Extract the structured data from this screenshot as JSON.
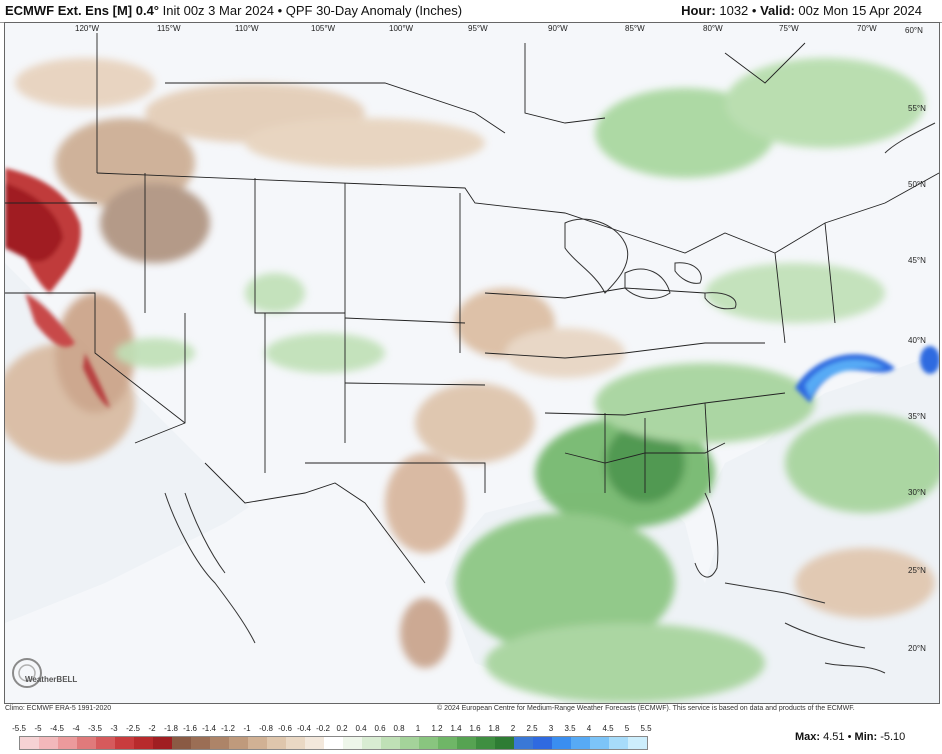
{
  "header": {
    "model": "ECMWF Ext. Ens [M]",
    "resolution": "0.4°",
    "init": "Init 00z 3 Mar 2024",
    "product": "QPF 30-Day Anomaly (Inches)",
    "hour_label": "Hour:",
    "hour_value": "1032",
    "valid_label": "Valid:",
    "valid_value": "00z Mon 15 Apr 2024"
  },
  "map": {
    "lon_labels": [
      "120°W",
      "115°W",
      "110°W",
      "105°W",
      "100°W",
      "95°W",
      "90°W",
      "85°W",
      "80°W",
      "75°W",
      "70°W",
      "60°N"
    ],
    "lat_labels": [
      "55°N",
      "50°N",
      "45°N",
      "40°N",
      "35°N",
      "30°N",
      "25°N",
      "20°N"
    ],
    "logo_text": "WeatherBELL"
  },
  "footer": {
    "climo": "Climo: ECMWF ERA-5 1991-2020",
    "copyright": "© 2024 European Centre for Medium-Range Weather Forecasts (ECMWF). This service is based on data and products of the ECMWF."
  },
  "scale": {
    "labels": [
      "-5.5",
      "-5",
      "-4.5",
      "-4",
      "-3.5",
      "-3",
      "-2.5",
      "-2",
      "-1.8",
      "-1.6",
      "-1.4",
      "-1.2",
      "-1",
      "-0.8",
      "-0.6",
      "-0.4",
      "-0.2",
      "0.2",
      "0.4",
      "0.6",
      "0.8",
      "1",
      "1.2",
      "1.4",
      "1.6",
      "1.8",
      "2",
      "2.5",
      "3",
      "3.5",
      "4",
      "4.5",
      "5",
      "5.5"
    ],
    "colors": [
      "#f6d2d4",
      "#f3b8bb",
      "#ec9a9c",
      "#e07a7b",
      "#d65a5c",
      "#c93c3e",
      "#b82a2c",
      "#a01e22",
      "#8a5a44",
      "#9b6e55",
      "#ad8468",
      "#bf9a7c",
      "#d1b194",
      "#dfc6ac",
      "#ead8c4",
      "#f3e8dc",
      "#ffffff",
      "#eef6ea",
      "#d8ecd2",
      "#bfe0b6",
      "#a4d39a",
      "#89c57f",
      "#6fb667",
      "#56a352",
      "#3f8f41",
      "#2e7c34",
      "#3a78d6",
      "#2f6ae0",
      "#3a8ef0",
      "#57aaf5",
      "#7cc4f8",
      "#a7dcfa",
      "#cdeefc"
    ],
    "max_label": "Max:",
    "max_value": "4.51",
    "min_label": "Min:",
    "min_value": "-5.10"
  }
}
